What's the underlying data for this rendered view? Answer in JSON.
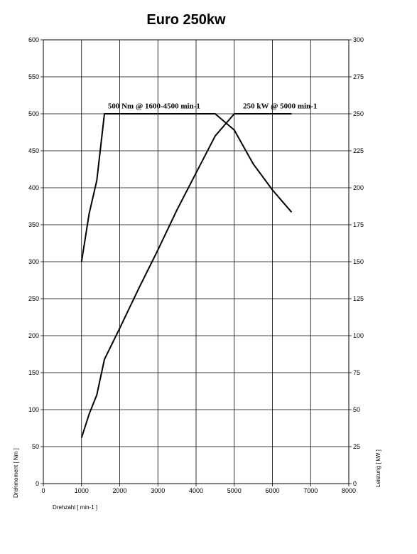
{
  "chart_data": {
    "type": "line",
    "title": "Euro 250kw",
    "xlabel": "Drehzahl [ min-1 ]",
    "ylabel_left": "Drehmoment [ Nm ]",
    "ylabel_right": "Leistung [ kW ]",
    "xlim": [
      0,
      8000
    ],
    "ylim_left": [
      0,
      600
    ],
    "ylim_right": [
      0,
      300
    ],
    "x_ticks": [
      0,
      1000,
      2000,
      3000,
      4000,
      5000,
      6000,
      7000,
      8000
    ],
    "y_left_ticks": [
      0,
      50,
      100,
      150,
      200,
      250,
      300,
      350,
      400,
      450,
      500,
      550,
      600
    ],
    "y_right_ticks": [
      0,
      25,
      50,
      75,
      100,
      125,
      150,
      175,
      200,
      225,
      250,
      275,
      300
    ],
    "grid": true,
    "series": [
      {
        "name": "Drehmoment",
        "axis": "left",
        "x": [
          1000,
          1200,
          1400,
          1600,
          2000,
          3000,
          4000,
          4500,
          5000,
          5500,
          6000,
          6500
        ],
        "y": [
          300,
          365,
          410,
          500,
          500,
          500,
          500,
          500,
          478,
          432,
          397,
          367
        ]
      },
      {
        "name": "Leistung",
        "axis": "right",
        "x": [
          1000,
          1200,
          1400,
          1600,
          2000,
          2500,
          3000,
          3500,
          4000,
          4500,
          5000,
          5500,
          6000,
          6500
        ],
        "y": [
          31,
          47,
          60,
          84,
          105,
          132,
          158,
          185,
          210,
          235,
          250,
          250,
          250,
          250
        ]
      }
    ],
    "annotations": [
      {
        "text": "500 Nm @ 1600-4500 min-1",
        "x": 2900,
        "y_left": 507
      },
      {
        "text": "250 kW @ 5000 min-1",
        "x": 6200,
        "y_left": 507
      }
    ]
  }
}
